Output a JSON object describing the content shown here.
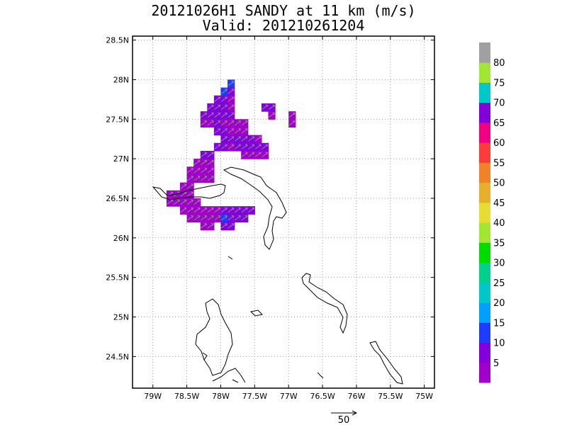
{
  "title_line1": "20121026H1 SANDY at 11 km (m/s)",
  "title_line2": "Valid: 201210261204",
  "map": {
    "lon_range": [
      -79.3,
      -74.85
    ],
    "lat_range": [
      24.1,
      28.55
    ],
    "lat_ticks": [
      {
        "value": 28.5,
        "label": "28.5N"
      },
      {
        "value": 28.0,
        "label": "28N"
      },
      {
        "value": 27.5,
        "label": "27.5N"
      },
      {
        "value": 27.0,
        "label": "27N"
      },
      {
        "value": 26.5,
        "label": "26.5N"
      },
      {
        "value": 26.0,
        "label": "26N"
      },
      {
        "value": 25.5,
        "label": "25.5N"
      },
      {
        "value": 25.0,
        "label": "25N"
      },
      {
        "value": 24.5,
        "label": "24.5N"
      }
    ],
    "lon_ticks": [
      {
        "value": -79.0,
        "label": "79W"
      },
      {
        "value": -78.5,
        "label": "78.5W"
      },
      {
        "value": -78.0,
        "label": "78W"
      },
      {
        "value": -77.5,
        "label": "77.5W"
      },
      {
        "value": -77.0,
        "label": "77W"
      },
      {
        "value": -76.5,
        "label": "76.5W"
      },
      {
        "value": -76.0,
        "label": "76W"
      },
      {
        "value": -75.5,
        "label": "75.5W"
      },
      {
        "value": -75.0,
        "label": "75W"
      }
    ],
    "grid": "dotted"
  },
  "colorbar": {
    "colors": [
      "#a000c8",
      "#8200dc",
      "#1e3cff",
      "#00a0ff",
      "#00c8c8",
      "#00d28c",
      "#00dc00",
      "#a0e632",
      "#e6dc32",
      "#e6af2d",
      "#f08228",
      "#fa3c3c",
      "#f00082",
      "#8200dc",
      "#00c8c8",
      "#a0e632",
      "#a0a0a0"
    ],
    "labels": [
      "5",
      "10",
      "15",
      "20",
      "25",
      "30",
      "35",
      "40",
      "45",
      "50",
      "55",
      "60",
      "65",
      "70",
      "75",
      "80"
    ]
  },
  "wind_field": {
    "units": "m/s",
    "cell_deg": 0.1,
    "cells": [
      [
        -77.85,
        27.95,
        3
      ],
      [
        -77.95,
        27.85,
        3
      ],
      [
        -77.85,
        27.85,
        2
      ],
      [
        -77.95,
        27.75,
        2
      ],
      [
        -78.05,
        27.75,
        2
      ],
      [
        -77.85,
        27.75,
        1
      ],
      [
        -78.15,
        27.65,
        2
      ],
      [
        -78.05,
        27.65,
        2
      ],
      [
        -77.95,
        27.65,
        2
      ],
      [
        -77.85,
        27.65,
        1
      ],
      [
        -78.25,
        27.55,
        2
      ],
      [
        -78.15,
        27.55,
        2
      ],
      [
        -78.05,
        27.55,
        2
      ],
      [
        -77.95,
        27.55,
        2
      ],
      [
        -77.85,
        27.55,
        2
      ],
      [
        -78.25,
        27.45,
        1
      ],
      [
        -78.15,
        27.45,
        1
      ],
      [
        -78.05,
        27.45,
        2
      ],
      [
        -77.95,
        27.45,
        1
      ],
      [
        -77.85,
        27.45,
        1
      ],
      [
        -77.75,
        27.45,
        1
      ],
      [
        -77.65,
        27.45,
        1
      ],
      [
        -78.05,
        27.35,
        2
      ],
      [
        -77.95,
        27.35,
        2
      ],
      [
        -77.85,
        27.35,
        1
      ],
      [
        -77.75,
        27.35,
        1
      ],
      [
        -77.65,
        27.35,
        1
      ],
      [
        -77.95,
        27.25,
        2
      ],
      [
        -77.85,
        27.25,
        2
      ],
      [
        -77.75,
        27.25,
        2
      ],
      [
        -77.65,
        27.25,
        2
      ],
      [
        -77.55,
        27.25,
        2
      ],
      [
        -77.45,
        27.25,
        1
      ],
      [
        -78.05,
        27.15,
        2
      ],
      [
        -77.95,
        27.15,
        2
      ],
      [
        -77.85,
        27.15,
        1
      ],
      [
        -77.75,
        27.15,
        2
      ],
      [
        -77.65,
        27.15,
        2
      ],
      [
        -77.55,
        27.15,
        2
      ],
      [
        -77.45,
        27.15,
        2
      ],
      [
        -77.35,
        27.15,
        2
      ],
      [
        -77.65,
        27.05,
        1
      ],
      [
        -77.55,
        27.05,
        1
      ],
      [
        -77.45,
        27.05,
        1
      ],
      [
        -77.35,
        27.05,
        1
      ],
      [
        -77.25,
        27.65,
        2
      ],
      [
        -77.35,
        27.65,
        2
      ],
      [
        -77.25,
        27.55,
        1
      ],
      [
        -76.95,
        27.55,
        1
      ],
      [
        -76.95,
        27.45,
        1
      ],
      [
        -78.25,
        27.05,
        2
      ],
      [
        -78.15,
        27.05,
        2
      ],
      [
        -78.35,
        26.95,
        1
      ],
      [
        -78.25,
        26.95,
        1
      ],
      [
        -78.15,
        26.95,
        1
      ],
      [
        -78.45,
        26.85,
        1
      ],
      [
        -78.35,
        26.85,
        1
      ],
      [
        -78.25,
        26.85,
        1
      ],
      [
        -78.15,
        26.85,
        1
      ],
      [
        -78.45,
        26.75,
        1
      ],
      [
        -78.35,
        26.75,
        1
      ],
      [
        -78.25,
        26.75,
        1
      ],
      [
        -78.15,
        26.75,
        1
      ],
      [
        -78.55,
        26.65,
        1
      ],
      [
        -78.45,
        26.65,
        1
      ],
      [
        -78.55,
        26.55,
        1
      ],
      [
        -78.45,
        26.55,
        1
      ],
      [
        -78.75,
        26.55,
        1
      ],
      [
        -78.65,
        26.55,
        1
      ],
      [
        -78.75,
        26.45,
        1
      ],
      [
        -78.65,
        26.45,
        1
      ],
      [
        -78.55,
        26.45,
        1
      ],
      [
        -78.45,
        26.45,
        1
      ],
      [
        -78.35,
        26.45,
        1
      ],
      [
        -78.55,
        26.35,
        1
      ],
      [
        -78.45,
        26.35,
        1
      ],
      [
        -78.35,
        26.35,
        1
      ],
      [
        -78.25,
        26.35,
        1
      ],
      [
        -78.15,
        26.35,
        1
      ],
      [
        -78.05,
        26.35,
        1
      ],
      [
        -77.95,
        26.35,
        2
      ],
      [
        -77.85,
        26.35,
        2
      ],
      [
        -77.75,
        26.35,
        2
      ],
      [
        -77.65,
        26.35,
        2
      ],
      [
        -77.55,
        26.35,
        2
      ],
      [
        -78.45,
        26.25,
        1
      ],
      [
        -78.35,
        26.25,
        1
      ],
      [
        -78.25,
        26.25,
        1
      ],
      [
        -78.15,
        26.25,
        1
      ],
      [
        -78.05,
        26.25,
        1
      ],
      [
        -77.95,
        26.25,
        3
      ],
      [
        -77.85,
        26.25,
        2
      ],
      [
        -77.75,
        26.25,
        2
      ],
      [
        -77.65,
        26.25,
        2
      ],
      [
        -78.25,
        26.15,
        1
      ],
      [
        -78.15,
        26.15,
        1
      ],
      [
        -77.95,
        26.15,
        2
      ],
      [
        -77.85,
        26.15,
        2
      ]
    ]
  },
  "scale_arrow": {
    "label": "50"
  }
}
